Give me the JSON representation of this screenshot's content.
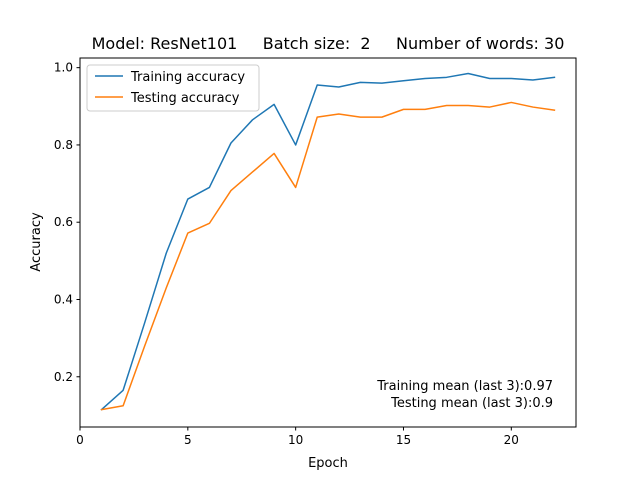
{
  "chart_data": {
    "type": "line",
    "title": "Model: ResNet101     Batch size:  2     Number of words: 30",
    "xlabel": "Epoch",
    "ylabel": "Accuracy",
    "xlim": [
      0,
      23
    ],
    "ylim": [
      0.07,
      1.025
    ],
    "xticks": [
      0,
      5,
      10,
      15,
      20
    ],
    "yticks": [
      0.2,
      0.4,
      0.6,
      0.8,
      1.0
    ],
    "ytick_labels": [
      "0.2",
      "0.4",
      "0.6",
      "0.8",
      "1.0"
    ],
    "grid": false,
    "legend_position": "upper left",
    "x": [
      1,
      2,
      3,
      4,
      5,
      6,
      7,
      8,
      9,
      10,
      11,
      12,
      13,
      14,
      15,
      16,
      17,
      18,
      19,
      20,
      21,
      22
    ],
    "series": [
      {
        "name": "Training accuracy",
        "color": "#1f77b4",
        "values": [
          0.115,
          0.165,
          0.34,
          0.52,
          0.66,
          0.69,
          0.805,
          0.865,
          0.905,
          0.8,
          0.955,
          0.95,
          0.962,
          0.96,
          0.966,
          0.972,
          0.975,
          0.985,
          0.972,
          0.972,
          0.968,
          0.975
        ]
      },
      {
        "name": "Testing accuracy",
        "color": "#ff7f0e",
        "values": [
          0.115,
          0.125,
          0.28,
          0.43,
          0.572,
          0.597,
          0.682,
          0.73,
          0.778,
          0.69,
          0.872,
          0.88,
          0.872,
          0.872,
          0.892,
          0.892,
          0.902,
          0.902,
          0.898,
          0.91,
          0.898,
          0.89
        ]
      }
    ],
    "annotations": [
      "Training mean (last 3):0.97",
      "Testing mean (last 3):0.9"
    ]
  }
}
